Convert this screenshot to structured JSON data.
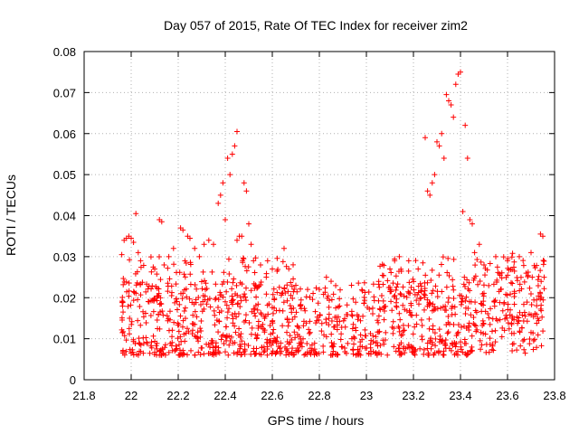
{
  "chart_data": {
    "type": "scatter",
    "title": "Day 057 of 2015, Rate Of TEC Index for receiver zim2",
    "xlabel": "GPS time / hours",
    "ylabel": "ROTI / TECUs",
    "xlim": [
      21.8,
      23.8
    ],
    "ylim": [
      0,
      0.08
    ],
    "x_ticks": [
      "21.8",
      "22",
      "22.2",
      "22.4",
      "22.6",
      "22.8",
      "23",
      "23.2",
      "23.4",
      "23.6",
      "23.8"
    ],
    "y_ticks": [
      "0",
      "0.01",
      "0.02",
      "0.03",
      "0.04",
      "0.05",
      "0.06",
      "0.07",
      "0.08"
    ],
    "grid": true,
    "marker": "+",
    "color": "#ff0000",
    "series": [
      {
        "name": "zim2 ROTI",
        "points": [
          [
            21.96,
            0.0305
          ],
          [
            21.97,
            0.034
          ],
          [
            21.98,
            0.0345
          ],
          [
            21.99,
            0.035
          ],
          [
            22.0,
            0.0345
          ],
          [
            22.01,
            0.0335
          ],
          [
            22.02,
            0.0405
          ],
          [
            22.03,
            0.031
          ],
          [
            22.04,
            0.029
          ],
          [
            22.1,
            0.027
          ],
          [
            22.12,
            0.039
          ],
          [
            22.13,
            0.0385
          ],
          [
            22.14,
            0.028
          ],
          [
            22.16,
            0.03
          ],
          [
            22.18,
            0.032
          ],
          [
            22.21,
            0.037
          ],
          [
            22.22,
            0.0365
          ],
          [
            22.24,
            0.035
          ],
          [
            22.25,
            0.0345
          ],
          [
            22.27,
            0.032
          ],
          [
            22.29,
            0.03
          ],
          [
            22.31,
            0.033
          ],
          [
            22.33,
            0.034
          ],
          [
            22.35,
            0.033
          ],
          [
            22.37,
            0.043
          ],
          [
            22.38,
            0.045
          ],
          [
            22.39,
            0.048
          ],
          [
            22.4,
            0.039
          ],
          [
            22.41,
            0.054
          ],
          [
            22.42,
            0.05
          ],
          [
            22.43,
            0.055
          ],
          [
            22.44,
            0.057
          ],
          [
            22.45,
            0.0605
          ],
          [
            22.45,
            0.034
          ],
          [
            22.46,
            0.035
          ],
          [
            22.47,
            0.035
          ],
          [
            22.48,
            0.048
          ],
          [
            22.49,
            0.046
          ],
          [
            22.5,
            0.038
          ],
          [
            22.51,
            0.033
          ],
          [
            22.52,
            0.029
          ],
          [
            22.55,
            0.028
          ],
          [
            22.58,
            0.029
          ],
          [
            22.6,
            0.027
          ],
          [
            22.65,
            0.032
          ],
          [
            22.7,
            0.023
          ],
          [
            22.75,
            0.022
          ],
          [
            22.8,
            0.022
          ],
          [
            22.83,
            0.025
          ],
          [
            22.85,
            0.024
          ],
          [
            23.1,
            0.027
          ],
          [
            23.12,
            0.029
          ],
          [
            23.14,
            0.03
          ],
          [
            23.18,
            0.029
          ],
          [
            23.22,
            0.027
          ],
          [
            23.25,
            0.059
          ],
          [
            23.26,
            0.046
          ],
          [
            23.27,
            0.045
          ],
          [
            23.28,
            0.048
          ],
          [
            23.29,
            0.05
          ],
          [
            23.3,
            0.058
          ],
          [
            23.31,
            0.057
          ],
          [
            23.32,
            0.06
          ],
          [
            23.33,
            0.054
          ],
          [
            23.34,
            0.0695
          ],
          [
            23.35,
            0.068
          ],
          [
            23.36,
            0.067
          ],
          [
            23.37,
            0.064
          ],
          [
            23.38,
            0.072
          ],
          [
            23.39,
            0.0745
          ],
          [
            23.4,
            0.075
          ],
          [
            23.41,
            0.041
          ],
          [
            23.42,
            0.062
          ],
          [
            23.43,
            0.054
          ],
          [
            23.44,
            0.039
          ],
          [
            23.45,
            0.038
          ],
          [
            23.46,
            0.031
          ],
          [
            23.48,
            0.033
          ],
          [
            23.5,
            0.028
          ],
          [
            23.55,
            0.03
          ],
          [
            23.6,
            0.029
          ],
          [
            23.65,
            0.03
          ],
          [
            23.7,
            0.031
          ],
          [
            23.74,
            0.0355
          ],
          [
            23.75,
            0.035
          ]
        ]
      }
    ]
  }
}
